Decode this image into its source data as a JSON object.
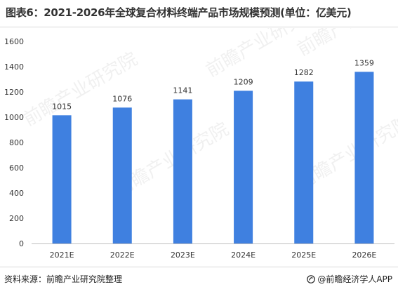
{
  "header": {
    "title": "图表6：2021-2026年全球复合材料终端产品市场规模预测(单位：亿美元)"
  },
  "footer": {
    "source": "资料来源：前瞻产业研究院整理",
    "brand": "@前瞻经济学人APP"
  },
  "watermark": {
    "text": "前瞻产业研究院"
  },
  "colors": {
    "bar": "#3f80e0",
    "axis": "#bfbfbf",
    "text": "#333333"
  },
  "chart_data": {
    "type": "bar",
    "categories": [
      "2021E",
      "2022E",
      "2023E",
      "2024E",
      "2025E",
      "2026E"
    ],
    "values": [
      1015,
      1076,
      1141,
      1209,
      1282,
      1359
    ],
    "title": "",
    "xlabel": "",
    "ylabel": "",
    "ylim": [
      0,
      1600
    ],
    "yticks": [
      0,
      200,
      400,
      600,
      800,
      1000,
      1200,
      1400,
      1600
    ],
    "grid": false,
    "legend": "none"
  }
}
